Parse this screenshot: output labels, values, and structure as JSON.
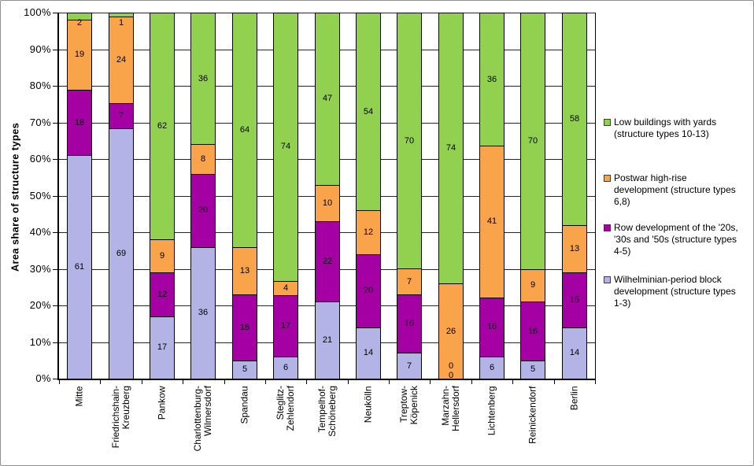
{
  "chart_data": {
    "type": "bar",
    "stacked": true,
    "stacked_percent": true,
    "title": "",
    "xlabel": "",
    "ylabel": "Area share of structure types",
    "ylim": [
      0,
      100
    ],
    "gridlines": true,
    "bar_labels": true,
    "yticks": [
      "0%",
      "10%",
      "20%",
      "30%",
      "40%",
      "50%",
      "60%",
      "70%",
      "80%",
      "90%",
      "100%"
    ],
    "categories": [
      "Mitte",
      "Friedrichshain-Kreuzberg",
      "Pankow",
      "Charlottenburg-Wilmersdorf",
      "Spandau",
      "Steglitz-Zehlendorf",
      "Tempelhof-Schöneberg",
      "Neukölln",
      "Treptow-Köpenick",
      "Marzahn-Hellersdorf",
      "Lichtenberg",
      "Reinickendorf",
      "Berlin"
    ],
    "category_labels": [
      [
        "Mitte"
      ],
      [
        "Friedrichshain-",
        "Kreuzberg"
      ],
      [
        "Pankow"
      ],
      [
        "Charlottenburg-",
        "Wilmersdorf"
      ],
      [
        "Spandau"
      ],
      [
        "Steglitz-",
        "Zehlendorf"
      ],
      [
        "Tempelhof-",
        "Schöneberg"
      ],
      [
        "Neukölln"
      ],
      [
        "Treptow-",
        "Köpenick"
      ],
      [
        "Marzahn-",
        "Hellersdorf"
      ],
      [
        "Lichtenberg"
      ],
      [
        "Reinickendorf"
      ],
      [
        "Berlin"
      ]
    ],
    "series": [
      {
        "name": "Wilhelminian-period block development (structure types 1-3)",
        "color": "#B3B3E6",
        "values": [
          61,
          69,
          17,
          36,
          5,
          6,
          21,
          14,
          7,
          0,
          6,
          5,
          14
        ]
      },
      {
        "name": "Row development of the '20s, '30s and '50s (structure types 4-5)",
        "color": "#A500A3",
        "values": [
          18,
          7,
          12,
          20,
          18,
          17,
          22,
          20,
          16,
          0,
          16,
          16,
          15
        ]
      },
      {
        "name": "Postwar high-rise development (structure types 6,8)",
        "color": "#F9A44A",
        "values": [
          19,
          24,
          9,
          8,
          13,
          4,
          10,
          12,
          7,
          26,
          41,
          9,
          13
        ]
      },
      {
        "name": "Low buildings with yards (structure types 10-13)",
        "color": "#92D050",
        "values": [
          2,
          1,
          62,
          36,
          64,
          74,
          47,
          54,
          70,
          74,
          36,
          70,
          58
        ]
      }
    ],
    "legend": {
      "position": "right",
      "entries": [
        {
          "label": "Low buildings with yards\n(structure types 10-13)",
          "color": "#92D050"
        },
        {
          "label": "Postwar high-rise\ndevelopment (structure types\n6,8)",
          "color": "#F9A44A"
        },
        {
          "label": "Row development of the '20s,\n'30s and '50s (structure types\n4-5)",
          "color": "#A500A3"
        },
        {
          "label": "Wilhelminian-period block\ndevelopment (structure types\n1-3)",
          "color": "#B3B3E6"
        }
      ]
    }
  }
}
